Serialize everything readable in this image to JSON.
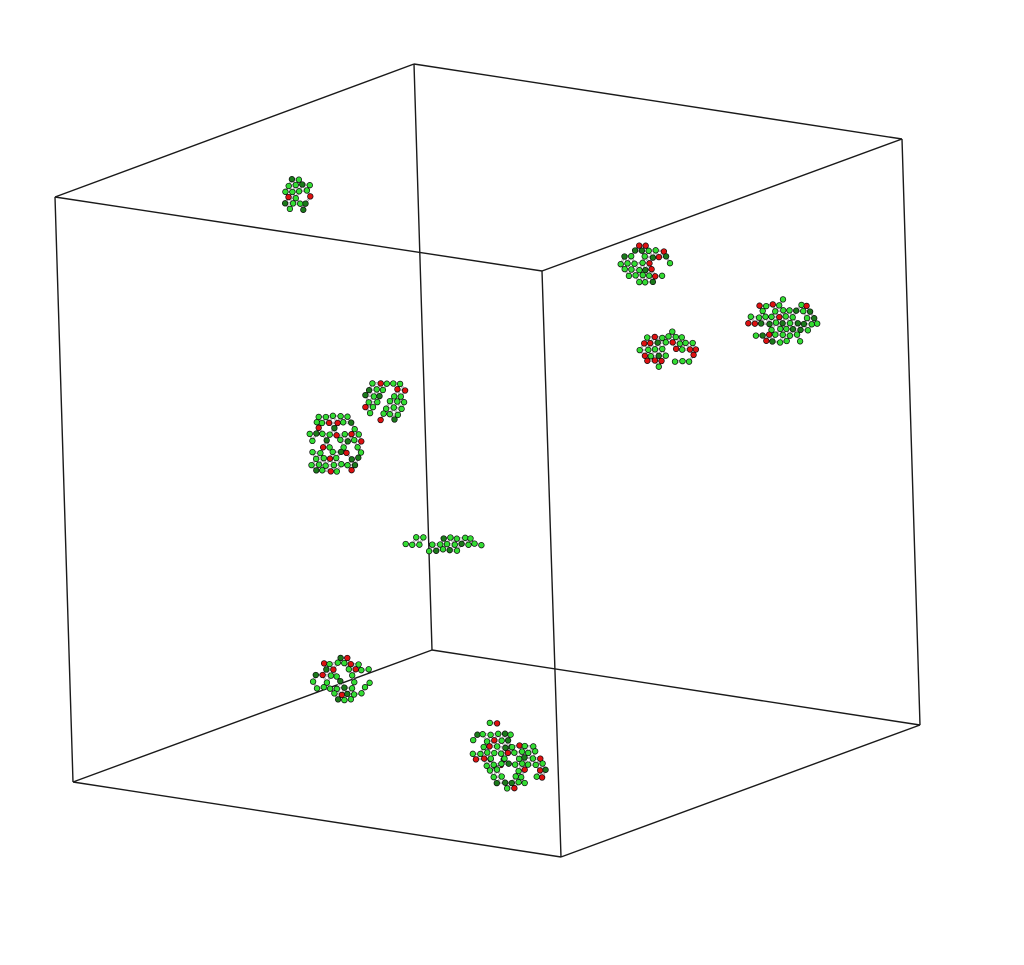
{
  "scene": {
    "type": "molecular-simulation-box",
    "box_edge_color": "#1a1a1a",
    "atom_colors": {
      "light_green": "#33dd33",
      "dark_green": "#1a7a1a",
      "red": "#dd1111"
    },
    "bond_color": "#9a9a9a",
    "cluster_count": 10
  }
}
